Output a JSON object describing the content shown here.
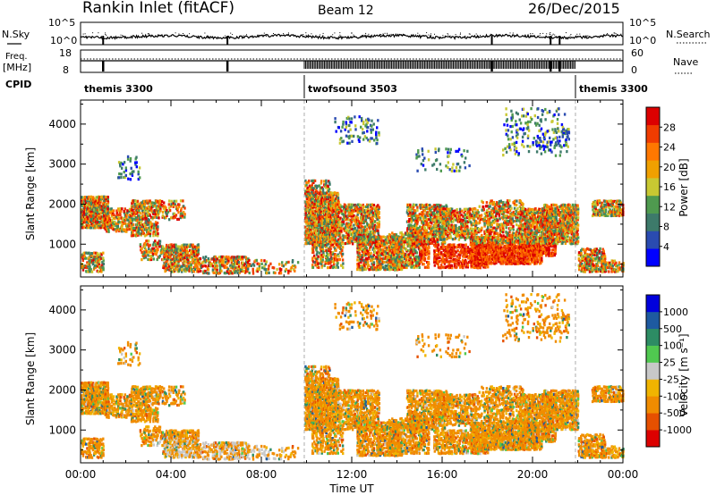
{
  "header": {
    "station": "Rankin Inlet (fitACF)",
    "beam": "Beam 12",
    "date": "26/Dec/2015"
  },
  "status_panels": {
    "nsky_label": "N.Sky",
    "nsky_ticks": [
      "10^5",
      "10^0"
    ],
    "nsearch_label": "N.Search",
    "nsearch_ticks": [
      "10^5",
      "10^0"
    ],
    "freq_label": "Freq.",
    "freq_unit": "[MHz]",
    "freq_ticks": [
      "18",
      "8"
    ],
    "nave_label": "Nave",
    "nave_ticks": [
      "60",
      "0"
    ],
    "cpid_label": "CPID"
  },
  "cpid_segments": [
    {
      "name": "themis 3300",
      "start_hour": 0,
      "end_hour": 9.9
    },
    {
      "name": "twofsound 3503",
      "start_hour": 9.9,
      "end_hour": 21.9
    },
    {
      "name": "themis 3300",
      "start_hour": 21.9,
      "end_hour": 24
    }
  ],
  "chart_data": [
    {
      "type": "heatmap",
      "panel": "power",
      "ylabel": "Slant Range [km]",
      "xlabel": "",
      "y_ticks": [
        "1000",
        "2000",
        "3000",
        "4000"
      ],
      "ylim": [
        180,
        4600
      ],
      "xlim_hours": [
        0,
        24
      ],
      "colorbar": {
        "label": "Power [dB]",
        "ticks": [
          "4",
          "8",
          "12",
          "16",
          "20",
          "24",
          "28"
        ],
        "range": [
          0,
          32
        ],
        "colors": [
          "#0000ff",
          "#2a4bb0",
          "#3d7a6a",
          "#4f9a4f",
          "#c8c832",
          "#f0a000",
          "#ff7800",
          "#f03c00",
          "#dc0000"
        ]
      }
    },
    {
      "type": "heatmap",
      "panel": "velocity",
      "ylabel": "Slant Range [km]",
      "xlabel": "Time UT",
      "y_ticks": [
        "1000",
        "2000",
        "3000",
        "4000"
      ],
      "ylim": [
        180,
        4600
      ],
      "x_ticks": [
        "00:00",
        "04:00",
        "08:00",
        "12:00",
        "16:00",
        "20:00",
        "00:00"
      ],
      "xlim_hours": [
        0,
        24
      ],
      "colorbar": {
        "label": "Velocity [m s⁻¹]",
        "ticks": [
          "1000",
          "500",
          "100",
          "25",
          "-25",
          "-100",
          "-500",
          "-1000"
        ],
        "colors": [
          "#0000dc",
          "#1e5aa0",
          "#2d8c64",
          "#50c850",
          "#c8c8c8",
          "#f0b400",
          "#f08c00",
          "#e65000",
          "#dc0000"
        ]
      }
    }
  ]
}
